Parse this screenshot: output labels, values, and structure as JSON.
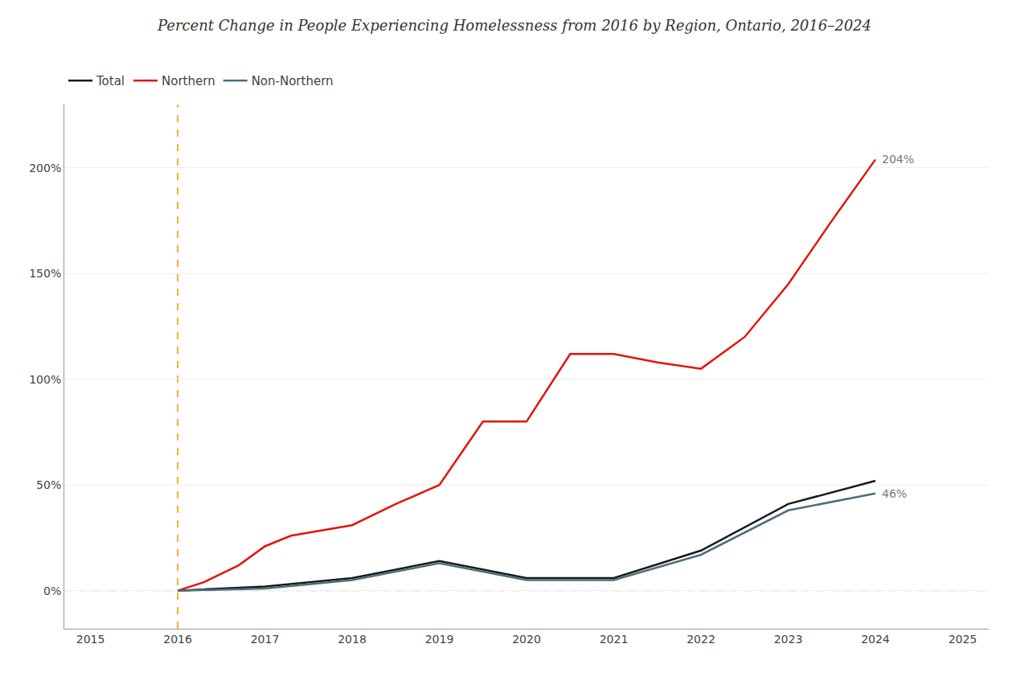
{
  "chart_data": {
    "type": "line",
    "title": "Percent Change in People Experiencing Homelessness from 2016 by Region, Ontario, 2016–2024",
    "series": [
      {
        "name": "Total",
        "color": "#1a1a1a",
        "x": [
          2016,
          2017,
          2018,
          2019,
          2020,
          2021,
          2022,
          2023,
          2024
        ],
        "values": [
          0,
          2,
          6,
          14,
          6,
          6,
          19,
          41,
          52
        ]
      },
      {
        "name": "Northern",
        "color": "#e0160c",
        "x": [
          2016,
          2016.3,
          2016.7,
          2017,
          2017.3,
          2017.7,
          2018,
          2018.5,
          2019,
          2019.5,
          2020,
          2020.5,
          2021,
          2021.5,
          2022,
          2022.5,
          2023,
          2023.5,
          2024
        ],
        "values": [
          0,
          4,
          12,
          21,
          26,
          29,
          31,
          41,
          50,
          80,
          80,
          112,
          112,
          108,
          105,
          120,
          145,
          175,
          204
        ]
      },
      {
        "name": "Non-Northern",
        "color": "#4d6e7a",
        "x": [
          2016,
          2017,
          2018,
          2019,
          2020,
          2021,
          2022,
          2023,
          2024
        ],
        "values": [
          0,
          1,
          5,
          13,
          5,
          5,
          17,
          38,
          46
        ]
      }
    ],
    "reference_lines": [
      {
        "axis": "x",
        "value": 2016,
        "color": "#f5a623",
        "line_style": "dashed"
      },
      {
        "axis": "y",
        "value": 0,
        "color": "#bbbbbb",
        "line_style": "dashed"
      }
    ],
    "annotations": [
      {
        "text": "204%",
        "x": 2024,
        "y": 204
      },
      {
        "text": "46%",
        "x": 2024,
        "y": 46
      }
    ],
    "xlim": [
      2014.7,
      2025.3
    ],
    "ylim": [
      -18,
      230
    ],
    "xticks": [
      2015,
      2016,
      2017,
      2018,
      2019,
      2020,
      2021,
      2022,
      2023,
      2024,
      2025
    ],
    "yticks": [
      {
        "value": 0,
        "label": "0%"
      },
      {
        "value": 50,
        "label": "50%"
      },
      {
        "value": 100,
        "label": "100%"
      },
      {
        "value": 150,
        "label": "150%"
      },
      {
        "value": 200,
        "label": "200%"
      }
    ],
    "grid": "y",
    "legend": "top"
  }
}
